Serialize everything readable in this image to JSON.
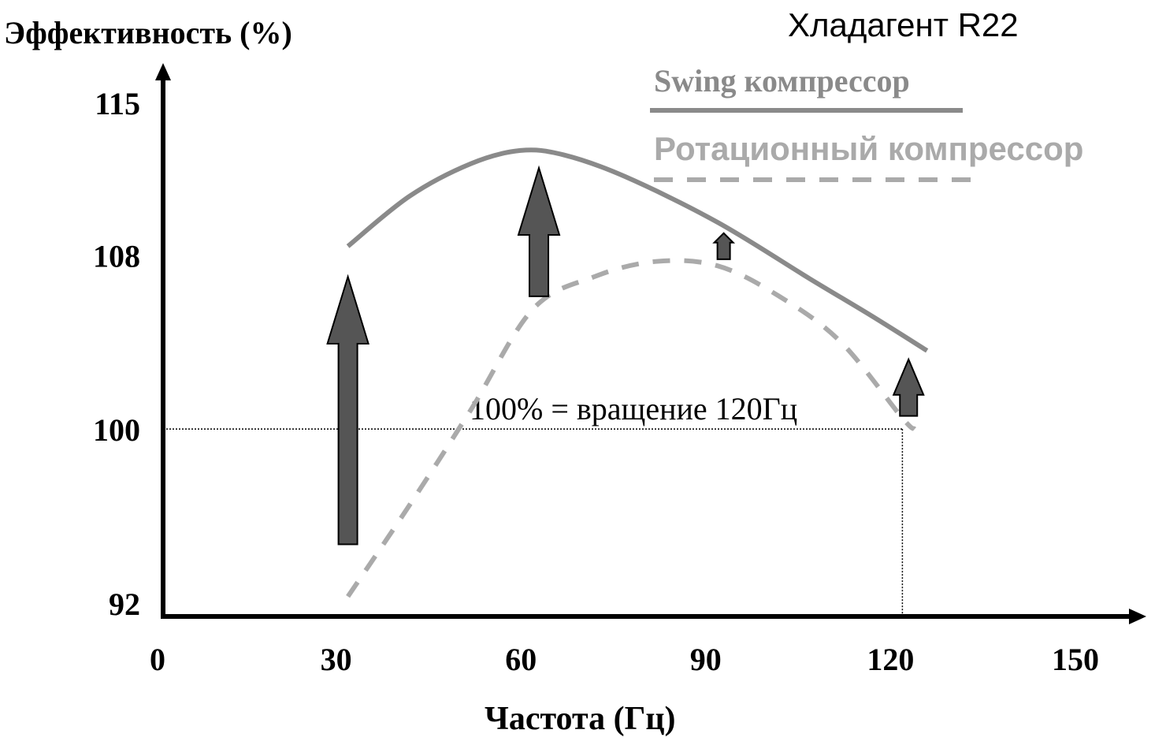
{
  "chart_data": {
    "type": "line",
    "title": "Хладагент R22",
    "ylabel": "Эффективность (%)",
    "xlabel": "Частота (Гц)",
    "xlim": [
      0,
      150
    ],
    "ylim": [
      92,
      115
    ],
    "x_ticks": [
      0,
      30,
      60,
      90,
      120,
      150
    ],
    "y_ticks": [
      92,
      100,
      108,
      115
    ],
    "grid": false,
    "legend_position": "top-right",
    "series": [
      {
        "name": "Swing компрессор",
        "style": "solid",
        "color": "#8a8a8a",
        "x": [
          30,
          40,
          50,
          58,
          65,
          75,
          90,
          105,
          115,
          124
        ],
        "y": [
          108.4,
          110.7,
          112.2,
          112.8,
          112.6,
          111.6,
          109.5,
          106.9,
          105.2,
          103.6
        ]
      },
      {
        "name": "Ротационный компрессор",
        "style": "dashed",
        "color": "#aaaaaa",
        "x": [
          30,
          40,
          50,
          60,
          70,
          80,
          90,
          100,
          110,
          120,
          122
        ],
        "y": [
          92.3,
          96.5,
          100.9,
          105.5,
          107.0,
          107.7,
          107.5,
          106.1,
          104.0,
          100.5,
          100.0
        ]
      }
    ],
    "arrows": [
      {
        "x": 30,
        "from": 94.7,
        "to": 107.0
      },
      {
        "x": 61,
        "from": 106.1,
        "to": 112.0
      },
      {
        "x": 91,
        "from": 107.8,
        "to": 109.0
      },
      {
        "x": 121,
        "from": 100.6,
        "to": 103.2
      }
    ],
    "reference": {
      "x": 120,
      "y": 100,
      "label": "100% = вращение 120Гц"
    },
    "arrow_color": "#555555"
  }
}
